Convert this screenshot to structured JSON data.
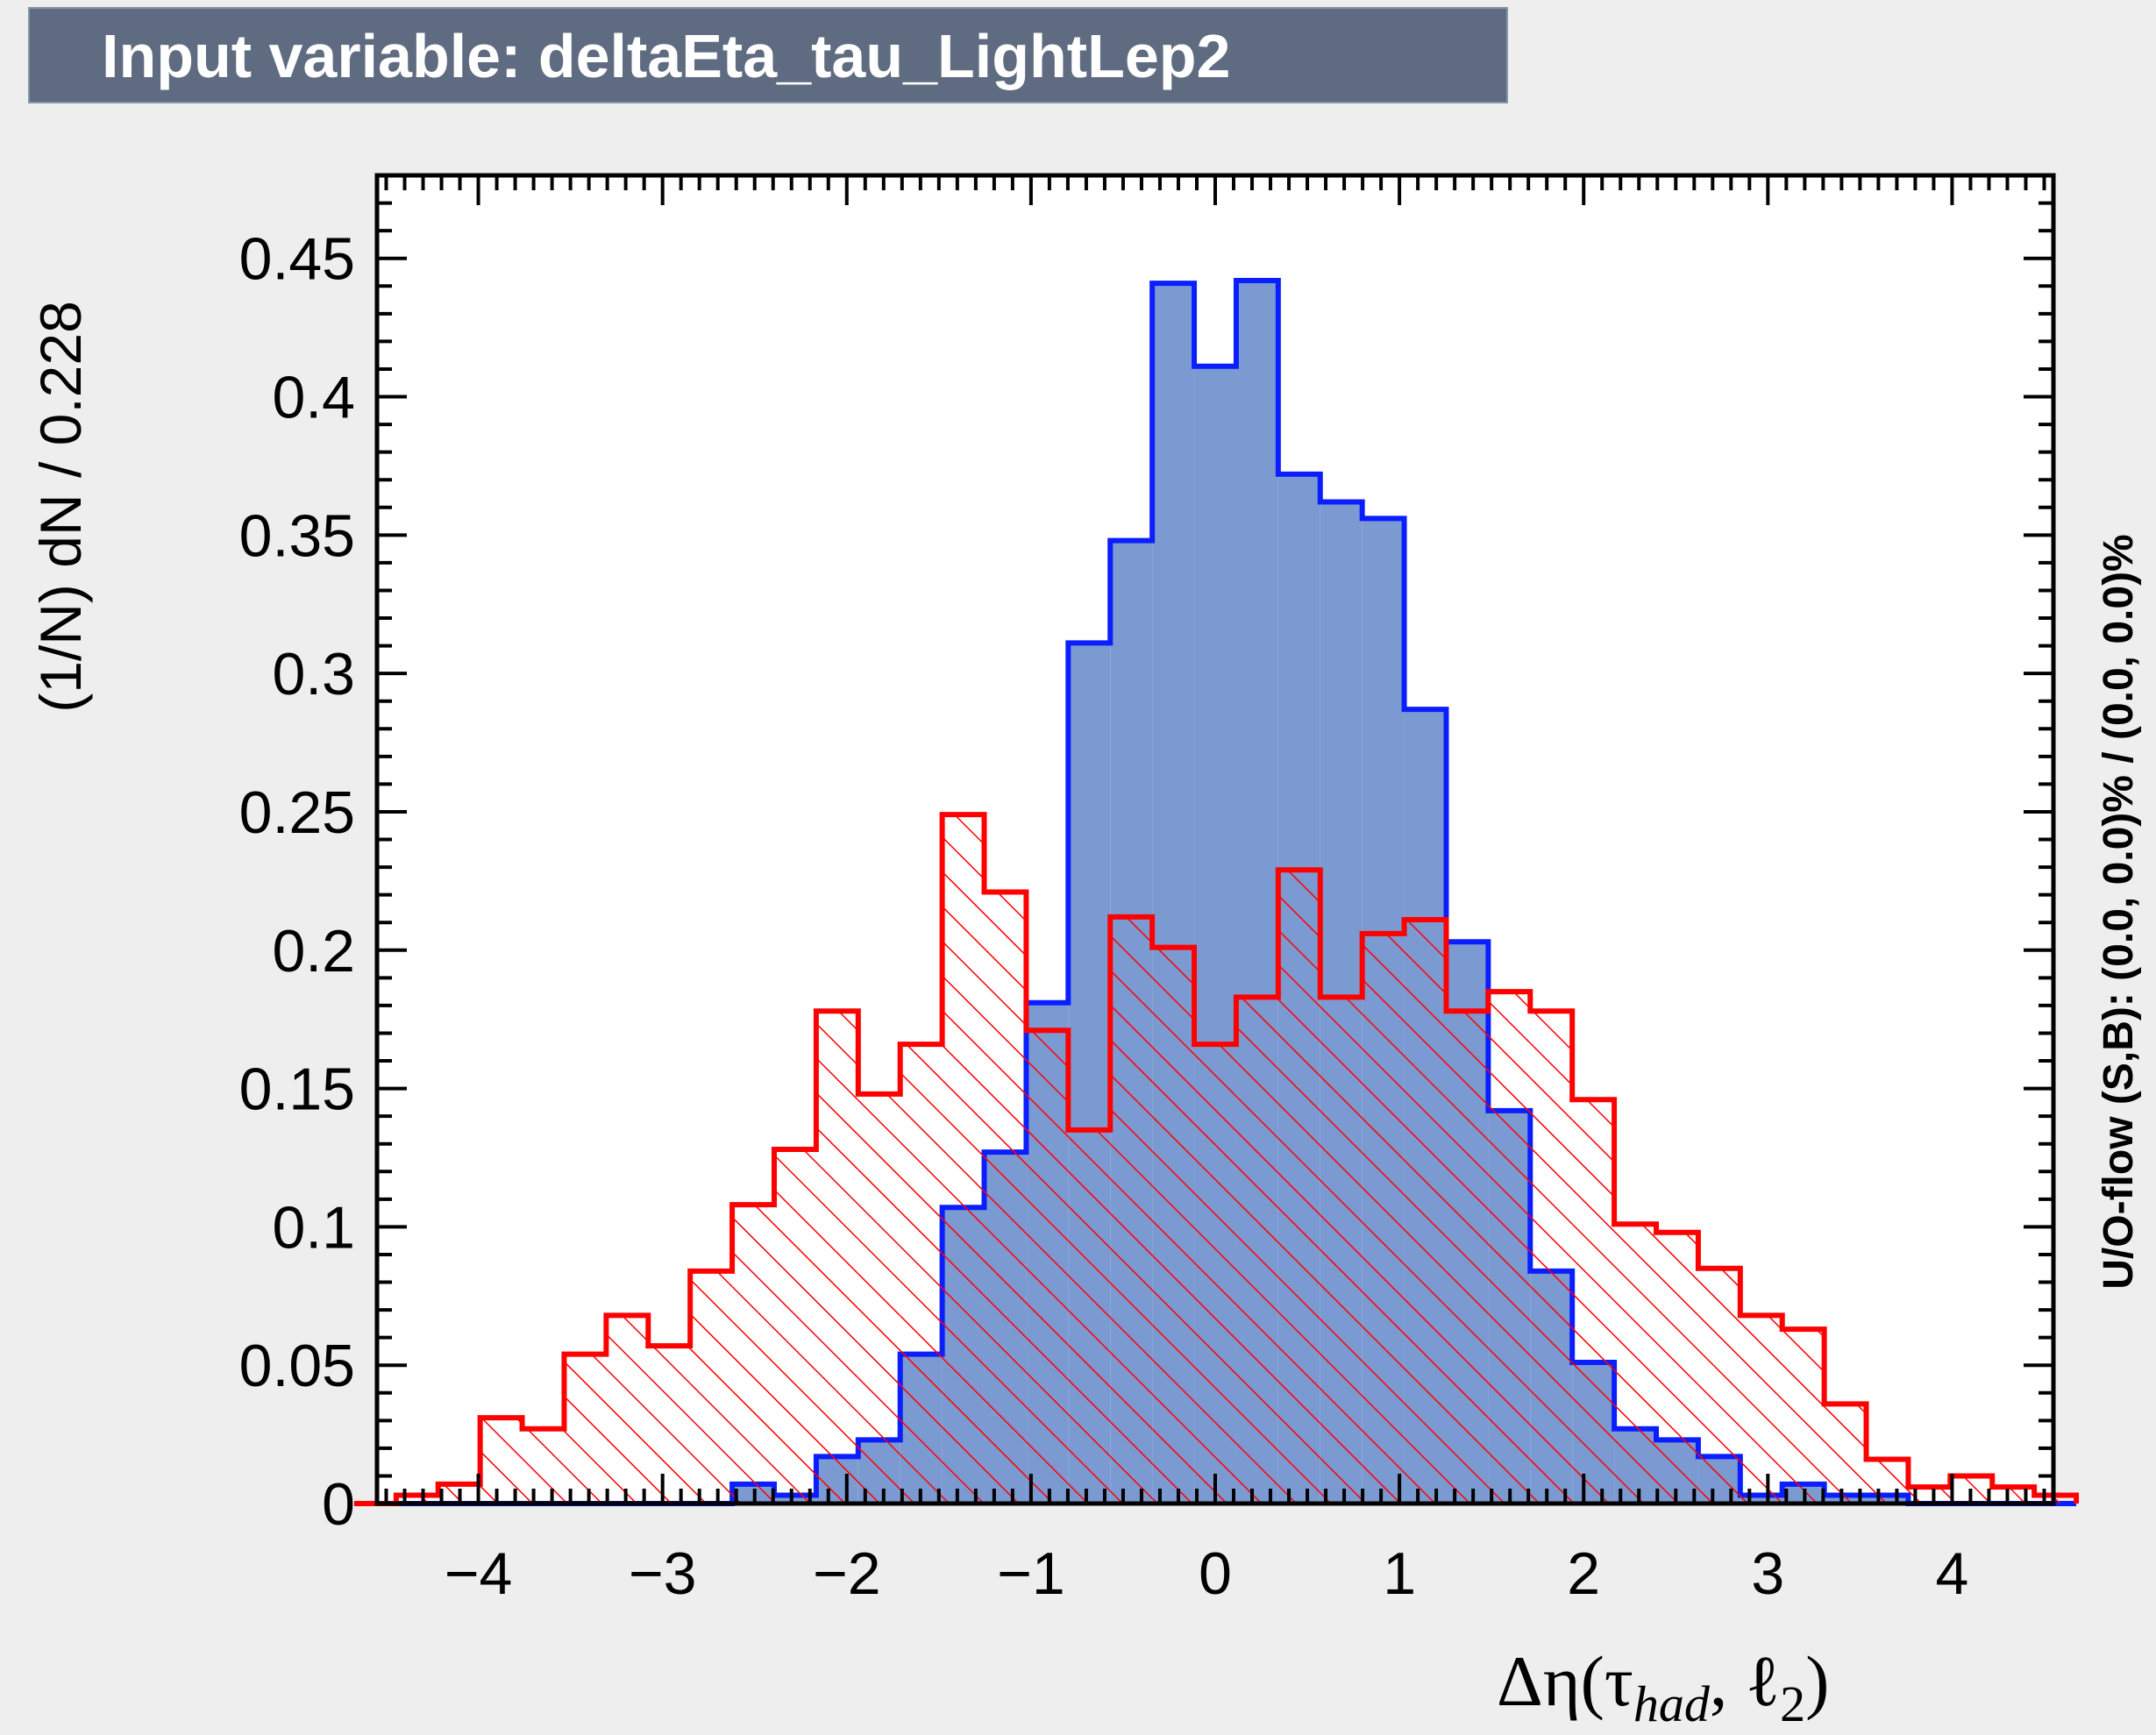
{
  "title": "Input variable: deltaEta_tau_LightLep2",
  "colors": {
    "signal_line": "#0a1eff",
    "signal_fill": "#7b9ad2",
    "background_line": "#ff0000",
    "frame": "#000000",
    "title_bar": "#5e6b80"
  },
  "chart_data": {
    "type": "histogram",
    "title": "Input variable: deltaEta_tau_LightLep2",
    "xlabel_parts": [
      "Δη(τ",
      "had",
      ", ℓ",
      "2",
      ")"
    ],
    "ylabel": "(1/N) dN / 0.228",
    "right_label": "U/O-flow (S,B): (0.0, 0.0)% / (0.0, 0.0)%",
    "xlim": [
      -4.55,
      4.55
    ],
    "ylim": [
      0,
      0.48
    ],
    "bin_width": 0.228,
    "x_ticks": [
      -4,
      -3,
      -2,
      -1,
      0,
      1,
      2,
      3,
      4
    ],
    "x_tick_labels": [
      "−4",
      "−3",
      "−2",
      "−1",
      "0",
      "1",
      "2",
      "3",
      "4"
    ],
    "y_ticks": [
      0,
      0.05,
      0.1,
      0.15,
      0.2,
      0.25,
      0.3,
      0.35,
      0.4,
      0.45
    ],
    "y_tick_labels": [
      "0",
      "0.05",
      "0.1",
      "0.15",
      "0.2",
      "0.25",
      "0.3",
      "0.35",
      "0.4",
      "0.45"
    ],
    "grid": false,
    "series": [
      {
        "style": "filled",
        "values": [
          0,
          0,
          0,
          0,
          0,
          0,
          0,
          0,
          0,
          0.007,
          0.003,
          0.017,
          0.023,
          0.054,
          0.107,
          0.127,
          0.181,
          0.311,
          0.348,
          0.441,
          0.411,
          0.442,
          0.372,
          0.362,
          0.356,
          0.287,
          0.203,
          0.142,
          0.084,
          0.051,
          0.027,
          0.023,
          0.017,
          0.003,
          0.007,
          0.003,
          0.003,
          0,
          0,
          0,
          0
        ]
      },
      {
        "style": "hatched",
        "values": [
          0,
          0.003,
          0.007,
          0.031,
          0.027,
          0.054,
          0.068,
          0.057,
          0.084,
          0.108,
          0.128,
          0.178,
          0.148,
          0.166,
          0.249,
          0.221,
          0.171,
          0.135,
          0.212,
          0.201,
          0.166,
          0.183,
          0.229,
          0.183,
          0.206,
          0.211,
          0.178,
          0.185,
          0.178,
          0.146,
          0.101,
          0.098,
          0.085,
          0.068,
          0.063,
          0.036,
          0.016,
          0.006,
          0.01,
          0.006,
          0.003
        ]
      }
    ]
  }
}
